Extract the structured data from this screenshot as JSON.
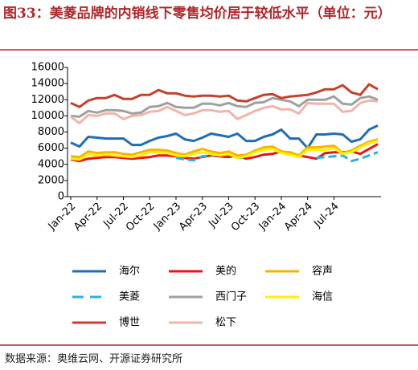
{
  "chart_data": {
    "type": "line",
    "title": "图33：美菱品牌的内销线下零售均价居于较低水平（单位：元）",
    "source": "数据来源：奥维云网、开源证券研究所",
    "categories": [
      "Jan-22",
      null,
      null,
      "Apr-22",
      null,
      null,
      "Jul-22",
      null,
      null,
      "Oct-22",
      null,
      null,
      "Jan-23",
      null,
      null,
      "Apr-23",
      null,
      null,
      "Jul-23",
      null,
      null,
      "Oct-23",
      null,
      null,
      "Jan-24",
      null,
      null,
      "Apr-24",
      null,
      null,
      "Jul-24",
      null,
      null,
      null,
      null,
      null
    ],
    "ylim": [
      0,
      16000
    ],
    "yticks": [
      0,
      2000,
      4000,
      6000,
      8000,
      10000,
      12000,
      14000,
      16000
    ],
    "series": [
      {
        "name": "海尔",
        "color": "#1f6db3",
        "values": [
          6700,
          6200,
          7400,
          7300,
          7200,
          7200,
          7200,
          6400,
          6400,
          6900,
          7300,
          7500,
          7800,
          7100,
          6900,
          7300,
          7800,
          7600,
          7400,
          7800,
          6900,
          6900,
          7400,
          7700,
          8300,
          7200,
          7200,
          6000,
          7700,
          7700,
          7800,
          7700,
          6800,
          7100,
          8300,
          8800
        ]
      },
      {
        "name": "美的",
        "color": "#e8141b",
        "values": [
          4600,
          4400,
          4700,
          4800,
          4900,
          4900,
          4800,
          4700,
          4800,
          4900,
          5100,
          5100,
          5000,
          4800,
          4700,
          4900,
          5100,
          5000,
          4900,
          5100,
          4700,
          4900,
          5200,
          5300,
          5600,
          5400,
          5100,
          4900,
          4700,
          5400,
          5500,
          5500,
          5600,
          5300,
          5900,
          6500
        ]
      },
      {
        "name": "容声",
        "color": "#f5b400",
        "values": [
          5000,
          4900,
          5600,
          5400,
          5500,
          5500,
          5300,
          5200,
          5500,
          5800,
          5800,
          5700,
          5400,
          5200,
          5600,
          5900,
          5600,
          5400,
          5600,
          5100,
          5200,
          5700,
          6100,
          6200,
          5600,
          5500,
          5100,
          6100,
          6100,
          6200,
          6300,
          5400,
          5700,
          6300,
          6800,
          7100
        ]
      },
      {
        "name": "美菱",
        "color": "#2ab0e6",
        "dashed": true,
        "values": [
          null,
          null,
          null,
          null,
          null,
          null,
          null,
          null,
          null,
          null,
          null,
          null,
          4800,
          4600,
          4500,
          5000,
          5100,
          5200,
          5200,
          4800,
          4900,
          null,
          null,
          null,
          null,
          null,
          null,
          null,
          4800,
          4900,
          5000,
          5100,
          4400,
          4700,
          5100,
          5500
        ]
      },
      {
        "name": "西门子",
        "color": "#a0a0a0",
        "values": [
          10000,
          9900,
          10600,
          10400,
          10700,
          10700,
          10600,
          10300,
          10400,
          11100,
          11200,
          11600,
          11100,
          11000,
          11000,
          11500,
          11500,
          11300,
          11600,
          11200,
          11100,
          11600,
          11700,
          12200,
          12000,
          11800,
          11200,
          12000,
          12000,
          12000,
          12400,
          11500,
          11400,
          12200,
          12400,
          12000
        ]
      },
      {
        "name": "海信",
        "color": "#fff000",
        "values": [
          4700,
          4600,
          5200,
          5100,
          5200,
          5100,
          5000,
          4900,
          5100,
          5500,
          5500,
          5400,
          5100,
          5000,
          5300,
          5500,
          5300,
          5100,
          5300,
          4800,
          5000,
          5500,
          5800,
          5900,
          5400,
          5200,
          4900,
          5800,
          5800,
          5800,
          6000,
          5300,
          5500,
          6100,
          6600,
          6900
        ]
      },
      {
        "name": "博世",
        "color": "#c4422b",
        "values": [
          11600,
          11100,
          11900,
          12200,
          12200,
          12600,
          12100,
          12100,
          12600,
          12600,
          13200,
          12800,
          12800,
          12500,
          12400,
          12500,
          12500,
          12400,
          12500,
          11900,
          11800,
          12200,
          12600,
          12700,
          12200,
          12400,
          12500,
          12600,
          12900,
          13300,
          13300,
          13800,
          12900,
          12600,
          13900,
          13300
        ]
      },
      {
        "name": "松下",
        "color": "#f0b4ac",
        "values": [
          9900,
          9100,
          10100,
          10000,
          10300,
          10300,
          9600,
          10000,
          10100,
          10500,
          10600,
          11100,
          10600,
          10100,
          10300,
          10700,
          10700,
          10500,
          10600,
          9600,
          10100,
          10600,
          11000,
          11200,
          10800,
          10800,
          10300,
          11600,
          11500,
          11500,
          11500,
          10500,
          10600,
          11600,
          11900,
          11800
        ]
      }
    ]
  }
}
